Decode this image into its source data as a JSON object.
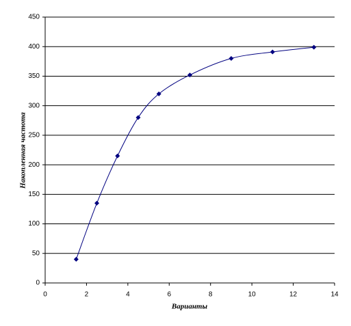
{
  "chart_data": {
    "type": "scatter",
    "smooth": true,
    "grid": true,
    "x_label": "Варианты",
    "y_label": "Накопленная частота",
    "x": [
      1.5,
      2.5,
      3.5,
      4.5,
      5.5,
      7,
      9,
      11,
      13
    ],
    "values": [
      40,
      135,
      215,
      280,
      320,
      352,
      380,
      391,
      399
    ],
    "color": "#000080",
    "xlim": [
      0,
      14
    ],
    "xticks": [
      0,
      2,
      4,
      6,
      8,
      10,
      12,
      14
    ],
    "ylim": [
      0,
      450
    ],
    "yticks": [
      0,
      50,
      100,
      150,
      200,
      250,
      300,
      350,
      400,
      450
    ]
  }
}
